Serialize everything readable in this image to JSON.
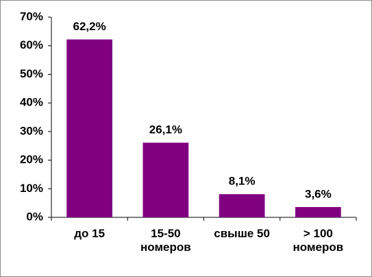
{
  "chart_data": {
    "type": "bar",
    "categories": [
      "до 15",
      "15-50 номеров",
      "свыше 50",
      "> 100 номеров"
    ],
    "values": [
      62.2,
      26.1,
      8.1,
      3.6
    ],
    "value_labels": [
      "62,2%",
      "26,1%",
      "8,1%",
      "3,6%"
    ],
    "color": "#800080",
    "ylim": [
      0,
      70
    ],
    "yticks": [
      {
        "value": 0,
        "label": "0%"
      },
      {
        "value": 10,
        "label": "10%"
      },
      {
        "value": 20,
        "label": "20%"
      },
      {
        "value": 30,
        "label": "30%"
      },
      {
        "value": 40,
        "label": "40%"
      },
      {
        "value": 50,
        "label": "50%"
      },
      {
        "value": 60,
        "label": "60%"
      },
      {
        "value": 70,
        "label": "70%"
      }
    ]
  }
}
